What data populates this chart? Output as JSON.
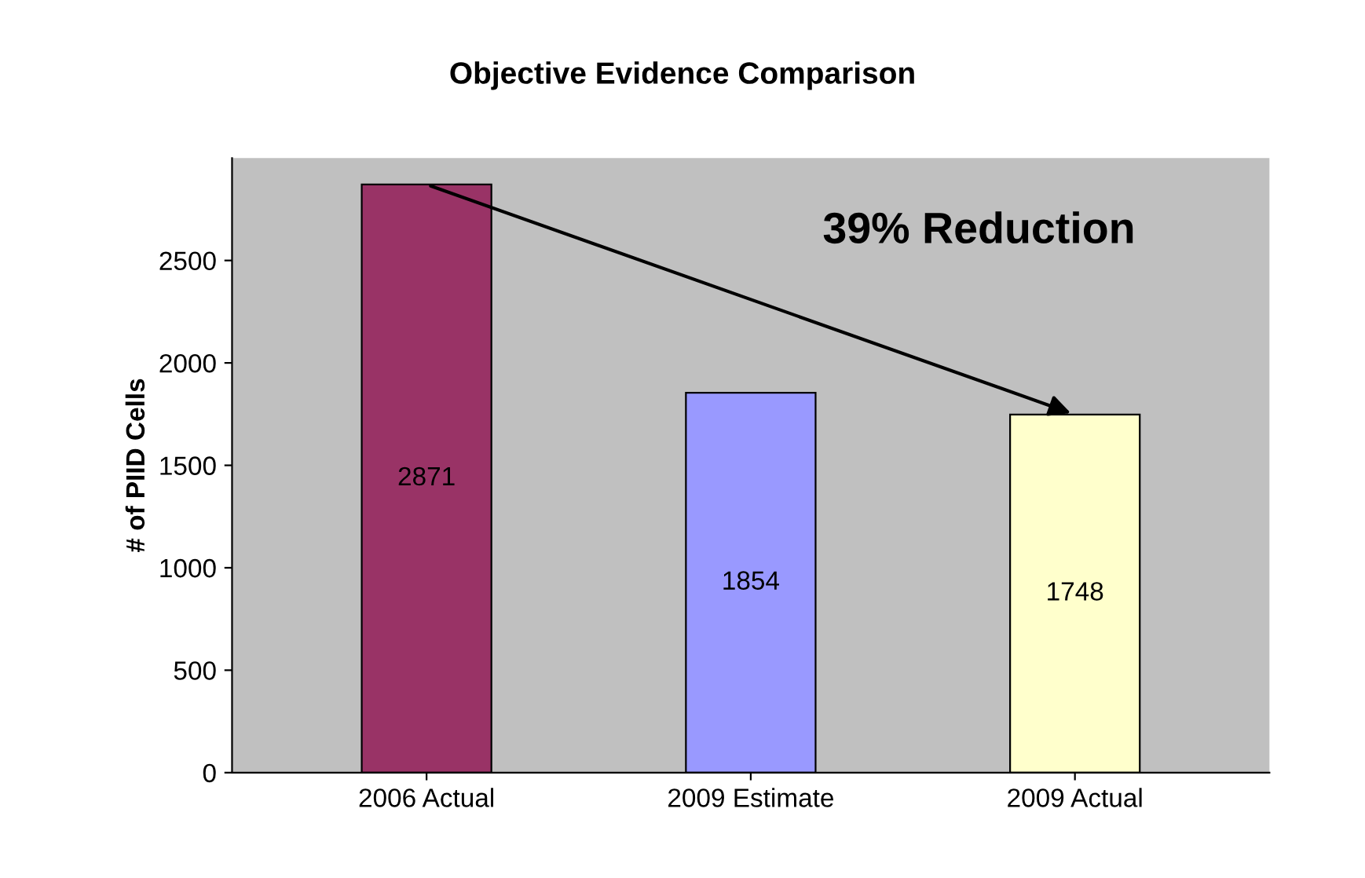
{
  "chart_data": {
    "type": "bar",
    "title": "Objective Evidence Comparison",
    "ylabel": "# of PIID Cells",
    "categories": [
      "2006 Actual",
      "2009 Estimate",
      "2009 Actual"
    ],
    "values": [
      2871,
      1854,
      1748
    ],
    "colors": [
      "#993366",
      "#9999ff",
      "#ffffcc"
    ],
    "ylim": [
      0,
      3000
    ],
    "yticks": [
      0,
      500,
      1000,
      1500,
      2000,
      2500
    ],
    "data_labels": true,
    "grid": false,
    "legend": false,
    "annotations": [
      "39% Reduction"
    ]
  }
}
